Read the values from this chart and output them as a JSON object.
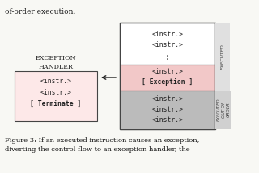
{
  "bg_color": "#f8f8f4",
  "top_text": "of-order execution.",
  "bottom_text_1": "Figure 3: If an executed instruction causes an exception,",
  "bottom_text_2": "diverting the control flow to an exception handler, the",
  "right_box": {
    "top_section_color": "#ffffff",
    "exception_section_color": "#f2c8c8",
    "bottom_section_color": "#bbbbbb",
    "border_color": "#444444",
    "top_lines": [
      "<instr.>",
      "<instr.>",
      "..."
    ],
    "exception_lines": [
      "<instr.>",
      "[ Exception ]"
    ],
    "bottom_lines": [
      "<instr.>",
      "<instr.>",
      "<instr.>"
    ]
  },
  "left_box": {
    "color": "#fde8e8",
    "border_color": "#444444",
    "label_line1": "Exception",
    "label_line2": "Handler",
    "lines": [
      "<instr.>",
      "<instr.>",
      "[ Terminate ]"
    ]
  },
  "executed_label": "EXECUTED",
  "executed_out_label": "EXECUTED\nOUT OF\nORDER",
  "font_mono": "monospace",
  "font_serif": "serif"
}
